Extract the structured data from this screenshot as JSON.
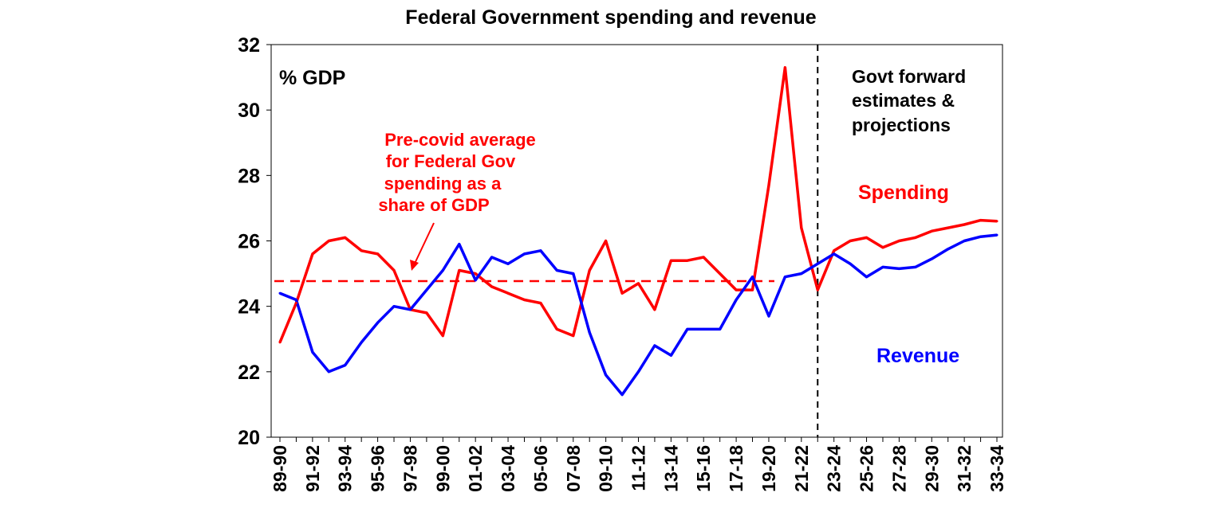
{
  "chart_data": {
    "type": "line",
    "title": "Federal Government spending and revenue",
    "ylabel": "% GDP",
    "xlabel": "",
    "ylim": [
      20,
      32
    ],
    "yticks": [
      20,
      22,
      24,
      26,
      28,
      30,
      32
    ],
    "categories": [
      "89-90",
      "90-91",
      "91-92",
      "92-93",
      "93-94",
      "94-95",
      "95-96",
      "96-97",
      "97-98",
      "98-99",
      "99-00",
      "00-01",
      "01-02",
      "02-03",
      "03-04",
      "04-05",
      "05-06",
      "06-07",
      "07-08",
      "08-09",
      "09-10",
      "10-11",
      "11-12",
      "12-13",
      "13-14",
      "14-15",
      "15-16",
      "16-17",
      "17-18",
      "18-19",
      "19-20",
      "20-21",
      "21-22",
      "22-23",
      "23-24",
      "24-25",
      "25-26",
      "26-27",
      "27-28",
      "28-29",
      "29-30",
      "30-31",
      "31-32",
      "32-33",
      "33-34"
    ],
    "tick_labels": [
      "89-90",
      "91-92",
      "93-94",
      "95-96",
      "97-98",
      "99-00",
      "01-02",
      "03-04",
      "05-06",
      "07-08",
      "09-10",
      "11-12",
      "13-14",
      "15-16",
      "17-18",
      "19-20",
      "21-22",
      "23-24",
      "25-26",
      "27-28",
      "29-30",
      "31-32",
      "33-34"
    ],
    "series": [
      {
        "name": "Spending",
        "color": "#ff0000",
        "values": [
          22.9,
          24.1,
          25.6,
          26.0,
          26.1,
          25.7,
          25.6,
          25.1,
          23.9,
          23.8,
          23.1,
          25.1,
          25.0,
          24.6,
          24.4,
          24.2,
          24.1,
          23.3,
          23.1,
          25.1,
          26.0,
          24.4,
          24.7,
          23.9,
          25.4,
          25.4,
          25.5,
          25.0,
          24.5,
          24.5,
          27.7,
          31.3,
          26.4,
          24.5,
          25.7,
          26.0,
          26.1,
          25.8,
          26.0,
          26.1,
          26.3,
          26.4,
          26.5,
          26.63,
          26.6
        ]
      },
      {
        "name": "Revenue",
        "color": "#0000ff",
        "values": [
          24.4,
          24.2,
          22.6,
          22.0,
          22.2,
          22.9,
          23.5,
          24.0,
          23.9,
          24.5,
          25.1,
          25.9,
          24.8,
          25.5,
          25.3,
          25.6,
          25.7,
          25.1,
          25.0,
          23.2,
          21.9,
          21.3,
          22.0,
          22.8,
          22.5,
          23.3,
          23.3,
          23.3,
          24.2,
          24.9,
          23.7,
          24.9,
          25.0,
          25.3,
          25.6,
          25.3,
          24.9,
          25.2,
          25.15,
          25.2,
          25.45,
          25.75,
          26.0,
          26.13,
          26.18
        ]
      }
    ],
    "reference_line": {
      "name": "Pre-covid average",
      "value": 24.77,
      "from": "89-90",
      "to": "19-20",
      "color": "#ff0000"
    },
    "divider": {
      "at": "22-23"
    },
    "annotations": {
      "avg_label": [
        "Pre-covid average",
        "for Federal Gov",
        "spending as a",
        "share of GDP"
      ],
      "forecast_label": [
        "Govt forward",
        "estimates &",
        "projections"
      ],
      "spending_label": "Spending",
      "revenue_label": "Revenue"
    },
    "grid": false,
    "legend": "none"
  }
}
